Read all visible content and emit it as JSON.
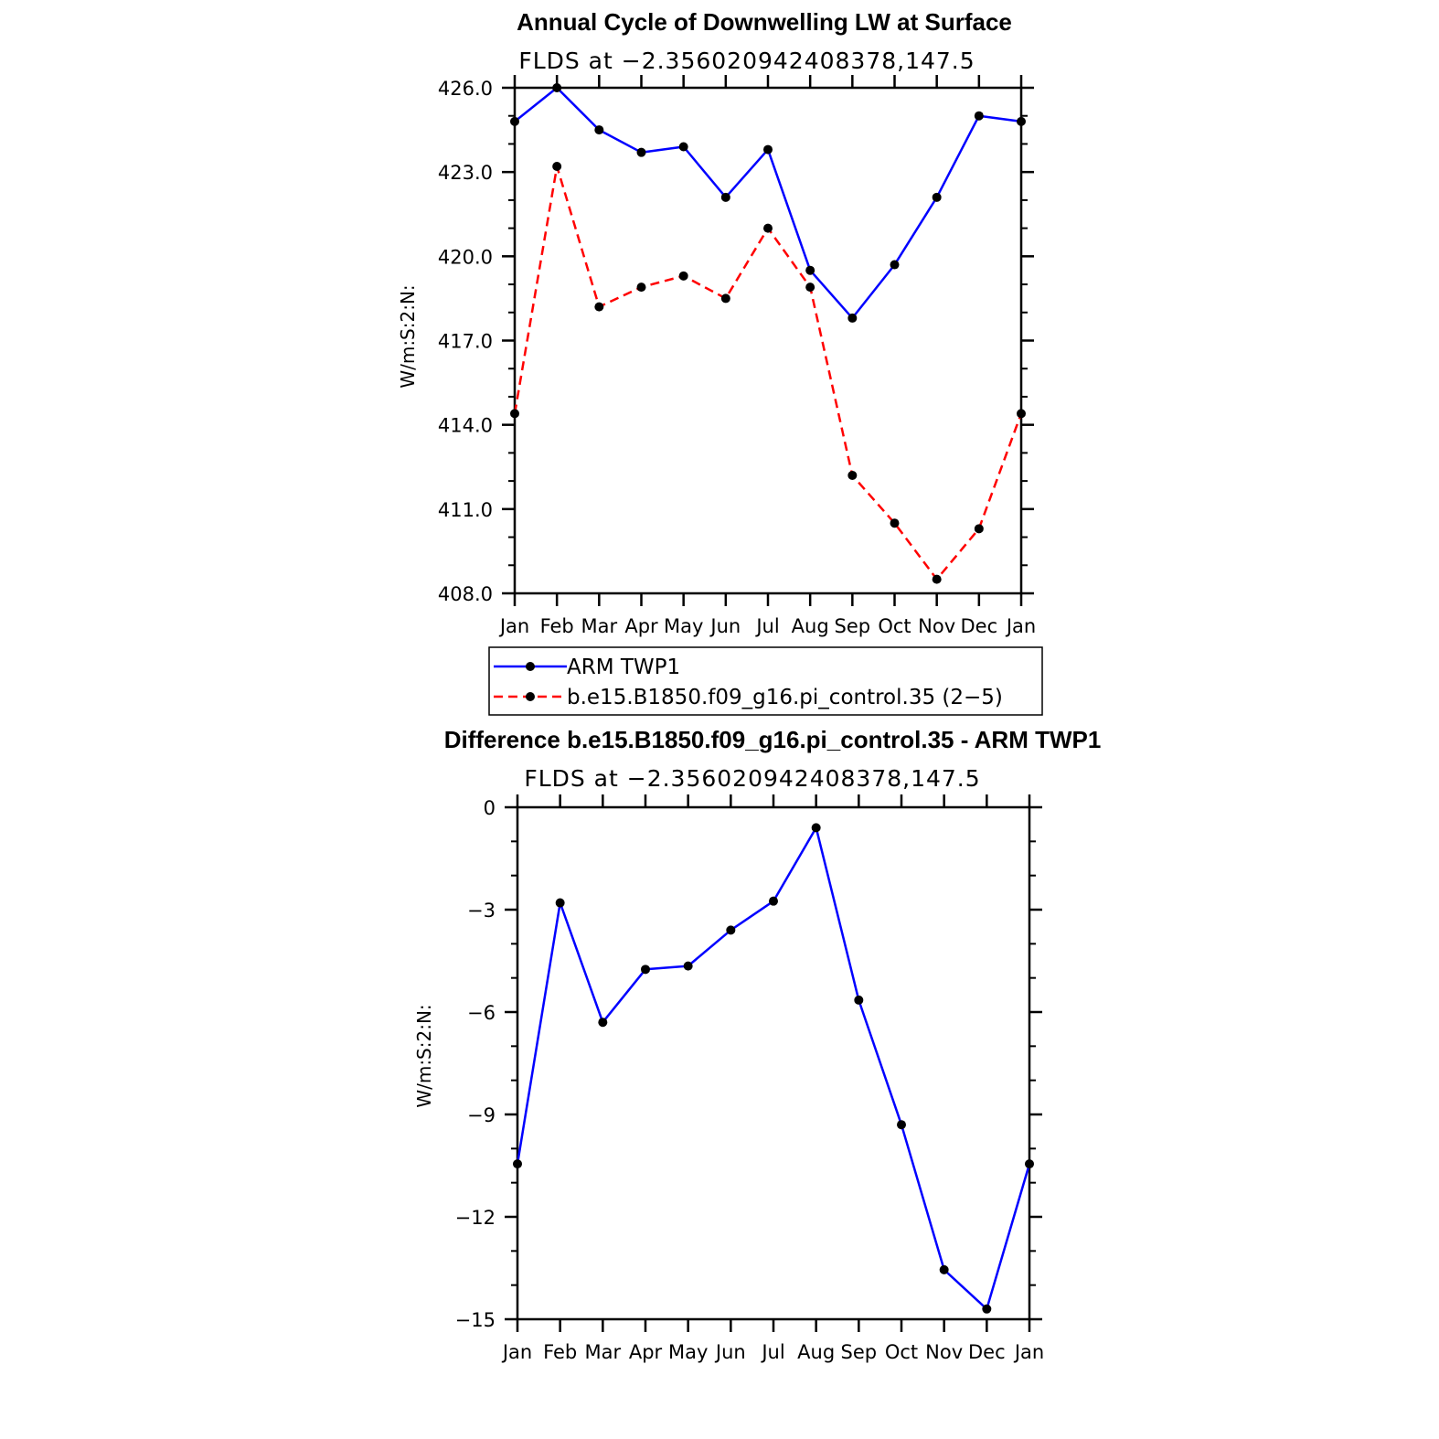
{
  "chart_data": [
    {
      "type": "line",
      "title": "Annual Cycle of Downwelling LW at Surface",
      "subtitle": "FLDS at −2.356020942408378,147.5",
      "ylabel": "W/m:S:2:N:",
      "categories": [
        "Jan",
        "Feb",
        "Mar",
        "Apr",
        "May",
        "Jun",
        "Jul",
        "Aug",
        "Sep",
        "Oct",
        "Nov",
        "Dec",
        "Jan"
      ],
      "ylim": [
        408.0,
        426.0
      ],
      "yticks": [
        "408.0",
        "411.0",
        "414.0",
        "417.0",
        "420.0",
        "423.0",
        "426.0"
      ],
      "series": [
        {
          "name": "ARM TWP1",
          "color": "#0000ff",
          "dash": "solid",
          "values": [
            424.8,
            426.0,
            424.5,
            423.7,
            423.9,
            422.1,
            423.8,
            419.5,
            417.8,
            419.7,
            422.1,
            425.0,
            424.8
          ]
        },
        {
          "name": "b.e15.B1850.f09_g16.pi_control.35 (2−5)",
          "color": "#ff0000",
          "dash": "dashed",
          "values": [
            414.4,
            423.2,
            418.2,
            418.9,
            419.3,
            418.5,
            421.0,
            418.9,
            412.2,
            410.5,
            408.5,
            410.3,
            414.4
          ]
        }
      ],
      "legend": "below"
    },
    {
      "type": "line",
      "title": "Difference b.e15.B1850.f09_g16.pi_control.35 - ARM TWP1",
      "subtitle": "FLDS at −2.356020942408378,147.5",
      "ylabel": "W/m:S:2:N:",
      "categories": [
        "Jan",
        "Feb",
        "Mar",
        "Apr",
        "May",
        "Jun",
        "Jul",
        "Aug",
        "Sep",
        "Oct",
        "Nov",
        "Dec",
        "Jan"
      ],
      "ylim": [
        -15,
        0
      ],
      "yticks": [
        "−15",
        "−12",
        "−9",
        "−6",
        "−3",
        "0"
      ],
      "series": [
        {
          "color": "#0000ff",
          "dash": "solid",
          "values": [
            -10.45,
            -2.8,
            -6.3,
            -4.75,
            -4.65,
            -3.6,
            -2.75,
            -0.6,
            -5.65,
            -9.3,
            -13.55,
            -14.7,
            -10.45
          ]
        }
      ]
    }
  ]
}
